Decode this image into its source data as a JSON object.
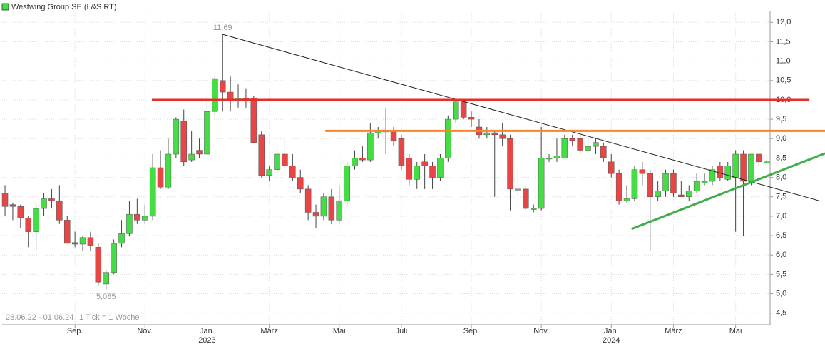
{
  "chart_data": {
    "type": "candlestick",
    "categories": [
      null,
      null,
      null,
      null,
      null,
      null,
      null,
      null,
      null,
      "Sep.",
      null,
      null,
      null,
      null,
      null,
      null,
      null,
      null,
      "Nov.",
      null,
      null,
      null,
      null,
      null,
      null,
      null,
      "Jan.",
      null,
      null,
      null,
      null,
      null,
      null,
      null,
      "März",
      null,
      null,
      null,
      null,
      null,
      null,
      null,
      null,
      "Mai",
      null,
      null,
      null,
      null,
      null,
      null,
      null,
      "Juli",
      null,
      null,
      null,
      null,
      null,
      null,
      null,
      null,
      "Sep.",
      null,
      null,
      null,
      null,
      null,
      null,
      null,
      null,
      "Nov.",
      null,
      null,
      null,
      null,
      null,
      null,
      null,
      null,
      "Jan.",
      null,
      null,
      null,
      null,
      null,
      null,
      null,
      "März",
      null,
      null,
      null,
      null,
      null,
      null,
      null,
      "Mai",
      null,
      null,
      null,
      null
    ],
    "year_labels": [
      {
        "index": 26,
        "label": "2023"
      },
      {
        "index": 78,
        "label": "2024"
      }
    ],
    "series": [
      {
        "name": "Westwing Group SE (L&S RT)",
        "color": "#44dd44",
        "down_color": "#e84545",
        "open": [
          7.6,
          7.3,
          7.25,
          6.95,
          6.6,
          7.2,
          7.45,
          7.4,
          6.9,
          6.32,
          6.28,
          6.45,
          6.2,
          5.25,
          5.55,
          6.3,
          6.55,
          7.05,
          6.9,
          7.0,
          8.25,
          7.75,
          8.6,
          9.45,
          8.45,
          8.7,
          8.6,
          9.7,
          10.5,
          10.2,
          10.0,
          10.05,
          10.05,
          9.1,
          8.05,
          8.2,
          8.6,
          8.3,
          8.0,
          7.7,
          7.1,
          7.0,
          7.5,
          6.9,
          7.4,
          8.3,
          8.5,
          8.45,
          9.15,
          9.2,
          9.2,
          9.0,
          8.5,
          7.95,
          8.4,
          8.3,
          8.0,
          8.5,
          9.5,
          9.95,
          9.55,
          9.3,
          9.1,
          9.15,
          9.1,
          9.0,
          7.7,
          7.7,
          7.2,
          7.2,
          8.5,
          8.5,
          8.5,
          9.0,
          9.0,
          8.7,
          8.8,
          8.8,
          8.4,
          8.1,
          7.4,
          7.45,
          8.2,
          8.1,
          7.5,
          7.65,
          8.1,
          7.55,
          7.5,
          7.65,
          7.85,
          7.9,
          8.3,
          7.95,
          8.0,
          8.6,
          7.9,
          8.6,
          8.4
        ],
        "high": [
          7.8,
          7.35,
          7.3,
          7.0,
          7.3,
          7.6,
          7.7,
          7.8,
          7.0,
          6.6,
          6.5,
          6.6,
          6.3,
          5.6,
          6.4,
          6.9,
          7.4,
          7.45,
          7.3,
          8.6,
          8.7,
          9.0,
          9.55,
          9.75,
          9.2,
          9.0,
          10.1,
          10.6,
          11.69,
          10.6,
          10.4,
          10.3,
          10.1,
          9.2,
          8.3,
          8.9,
          9.0,
          8.6,
          8.2,
          7.8,
          7.3,
          7.6,
          7.7,
          7.8,
          8.4,
          8.7,
          8.8,
          9.4,
          9.3,
          9.8,
          9.3,
          9.1,
          8.6,
          8.4,
          8.6,
          8.4,
          8.6,
          9.6,
          10.0,
          10.0,
          9.7,
          9.5,
          9.3,
          9.2,
          9.4,
          9.1,
          8.2,
          7.8,
          7.3,
          9.3,
          8.6,
          9.0,
          9.1,
          9.1,
          9.1,
          9.0,
          9.0,
          8.9,
          8.6,
          8.2,
          7.8,
          8.3,
          8.4,
          8.2,
          7.9,
          8.2,
          8.2,
          7.9,
          7.8,
          8.1,
          8.1,
          8.3,
          8.4,
          8.4,
          8.7,
          8.7,
          8.6,
          8.6,
          8.45
        ],
        "low": [
          7.0,
          6.9,
          6.7,
          6.2,
          6.1,
          7.0,
          7.2,
          6.8,
          6.3,
          6.2,
          6.1,
          6.1,
          5.2,
          5.085,
          5.5,
          6.2,
          6.5,
          6.8,
          6.8,
          6.9,
          7.7,
          7.7,
          8.5,
          8.3,
          8.4,
          8.5,
          8.6,
          9.6,
          9.7,
          9.7,
          9.8,
          9.8,
          8.9,
          8.0,
          7.9,
          8.1,
          8.2,
          7.9,
          7.6,
          6.9,
          6.7,
          6.9,
          6.8,
          6.8,
          7.3,
          8.2,
          8.4,
          8.4,
          9.0,
          8.6,
          8.8,
          8.2,
          7.8,
          7.7,
          7.7,
          7.7,
          7.9,
          8.4,
          9.4,
          9.5,
          9.3,
          9.0,
          9.0,
          7.5,
          8.8,
          7.15,
          7.5,
          7.15,
          7.1,
          7.15,
          8.4,
          8.4,
          8.5,
          8.8,
          8.6,
          8.6,
          8.6,
          8.4,
          8.0,
          7.3,
          7.35,
          7.4,
          7.8,
          6.1,
          7.4,
          7.5,
          7.5,
          7.5,
          7.4,
          7.6,
          7.8,
          7.8,
          7.9,
          7.9,
          6.6,
          6.5,
          7.8,
          8.3,
          8.35
        ],
        "close": [
          7.25,
          7.25,
          6.95,
          6.6,
          7.2,
          7.45,
          7.4,
          6.9,
          6.3,
          6.28,
          6.45,
          6.25,
          5.3,
          5.55,
          6.3,
          6.55,
          7.05,
          6.9,
          7.0,
          8.25,
          7.75,
          8.6,
          9.5,
          8.4,
          8.6,
          8.6,
          9.7,
          10.55,
          10.2,
          10.0,
          10.05,
          10.0,
          8.9,
          8.05,
          8.2,
          8.6,
          8.3,
          8.0,
          7.7,
          7.1,
          7.0,
          7.5,
          6.9,
          7.4,
          8.3,
          8.5,
          8.45,
          9.15,
          9.2,
          9.2,
          8.95,
          8.3,
          7.95,
          8.3,
          8.3,
          8.0,
          8.5,
          9.5,
          9.95,
          9.55,
          9.5,
          9.1,
          9.15,
          9.1,
          9.0,
          7.7,
          7.7,
          7.2,
          7.2,
          8.5,
          8.5,
          8.55,
          9.0,
          8.95,
          8.7,
          8.8,
          8.9,
          8.5,
          8.1,
          7.4,
          7.45,
          8.2,
          8.1,
          7.5,
          7.65,
          8.1,
          7.6,
          7.5,
          7.65,
          7.9,
          7.9,
          8.2,
          8.0,
          8.3,
          8.6,
          7.9,
          8.6,
          8.4,
          8.4
        ]
      }
    ],
    "annotations": [
      {
        "index": 28,
        "value": 11.69,
        "label": "11,69",
        "position": "above"
      },
      {
        "index": 13,
        "value": 5.085,
        "label": "5,085",
        "position": "below"
      }
    ],
    "trendlines": [
      {
        "x": [
          28,
          104.9
        ],
        "y": [
          11.69,
          7.39
        ],
        "color": "#222222",
        "width": 1
      },
      {
        "x": [
          18.9,
          103.5
        ],
        "y": [
          10.0,
          10.0
        ],
        "color": "#e82c2c",
        "width": 3
      },
      {
        "x": [
          41.2,
          105.5
        ],
        "y": [
          9.2,
          9.2
        ],
        "color": "#f5862a",
        "width": 3
      },
      {
        "x": [
          80.6,
          105.5
        ],
        "y": [
          6.67,
          8.62
        ],
        "color": "#3fae49",
        "width": 3
      }
    ],
    "xlim": [
      -0.37,
      105.5
    ],
    "ylim": [
      4.2,
      12.3
    ],
    "yticks": [
      {
        "value": 4.5,
        "label": "4,5"
      },
      {
        "value": 5.0,
        "label": "5,0"
      },
      {
        "value": 5.5,
        "label": "5,5"
      },
      {
        "value": 6.0,
        "label": "6,0"
      },
      {
        "value": 6.5,
        "label": "6,5"
      },
      {
        "value": 7.0,
        "label": "7,0"
      },
      {
        "value": 7.5,
        "label": "7,5"
      },
      {
        "value": 8.0,
        "label": "8,0"
      },
      {
        "value": 8.5,
        "label": "8,5"
      },
      {
        "value": 9.0,
        "label": "9,0"
      },
      {
        "value": 9.5,
        "label": "9,5"
      },
      {
        "value": 10.0,
        "label": "10,0"
      },
      {
        "value": 10.5,
        "label": "10,5"
      },
      {
        "value": 11.0,
        "label": "11,0"
      },
      {
        "value": 11.5,
        "label": "11,5"
      },
      {
        "value": 12.0,
        "label": "12,0"
      }
    ],
    "range_note": "28.06.22 - 01.06.24",
    "tick_note": "1 Tick = 1 Woche",
    "grid": true
  }
}
